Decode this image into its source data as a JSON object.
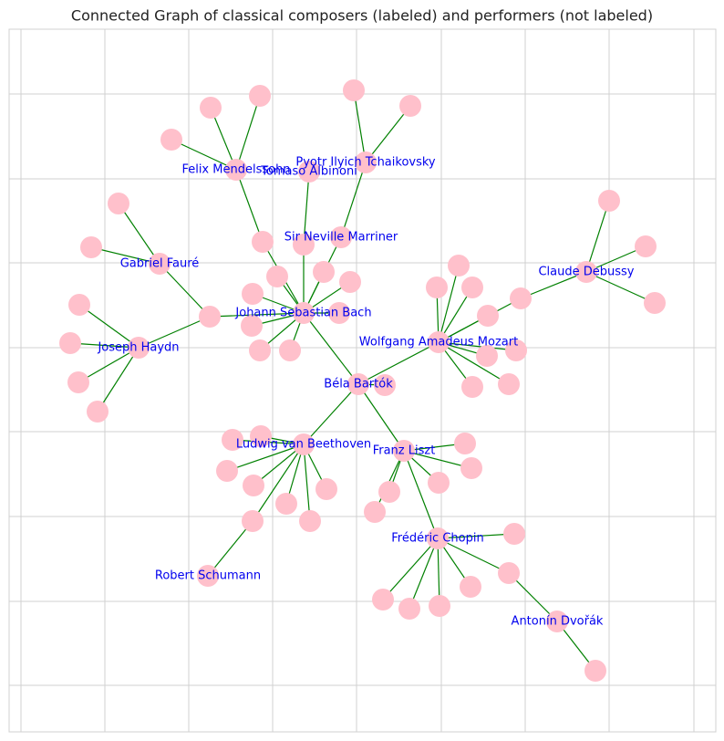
{
  "title": "Connected Graph of classical composers (labeled) and performers (not labeled)",
  "nodes": [
    {
      "label": "Johann Sebastian Bach"
    },
    {
      "label": "Béla Bartók"
    },
    {
      "label": "Wolfgang Amadeus Mozart"
    },
    {
      "label": "Ludwig van Beethoven"
    },
    {
      "label": "Franz Liszt"
    },
    {
      "label": "Frédéric Chopin"
    },
    {
      "label": "Antonín Dvořák"
    },
    {
      "label": "Robert Schumann"
    },
    {
      "label": "Joseph Haydn"
    },
    {
      "label": "Gabriel Fauré"
    },
    {
      "label": "Felix Mendelssohn"
    },
    {
      "label": "Tomaso Albinoni"
    },
    {
      "label": "Pyotr Ilyich Tchaikovsky"
    },
    {
      "label": "Sir Neville Marriner"
    },
    {
      "label": "Claude Debussy"
    }
  ]
}
